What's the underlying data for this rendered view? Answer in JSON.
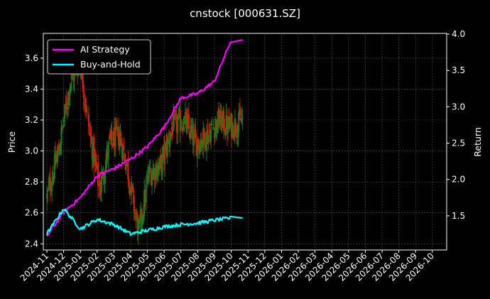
{
  "chart_data": {
    "type": "line",
    "title": "cnstock [000631.SZ]",
    "ylabel": "Price",
    "y2label": "Return",
    "ylim": [
      2.36,
      3.76
    ],
    "y2lim": [
      1.03,
      4.01
    ],
    "yticks": [
      "2.4",
      "2.6",
      "2.8",
      "3.0",
      "3.2",
      "3.4",
      "3.6"
    ],
    "y2ticks": [
      "1.5",
      "2.0",
      "2.5",
      "3.0",
      "3.5",
      "4.0"
    ],
    "xticks": [
      "2024-11",
      "2024-12",
      "2025-01",
      "2025-02",
      "2025-03",
      "2025-04",
      "2025-05",
      "2025-06",
      "2025-07",
      "2025-08",
      "2025-09",
      "2025-10",
      "2025-11",
      "2025-12",
      "2026-01",
      "2026-02",
      "2026-03",
      "2026-04",
      "2026-05",
      "2026-06",
      "2026-07",
      "2026-08",
      "2026-09",
      "2026-10"
    ],
    "grid": true,
    "legend_position": "top-left",
    "colors": {
      "ai": "#ff00ff",
      "bh": "#00ffff",
      "up": "#1f7a1f",
      "down": "#cc2200",
      "grid": "#555555"
    },
    "candles_price_range": {
      "start": "2024-11",
      "end": "2025-10",
      "approx_open": 2.7,
      "peak": 3.58,
      "trough": 2.47,
      "approx_close": 3.2
    },
    "series": [
      {
        "name": "AI Strategy",
        "axis": "right",
        "x": [
          "2024-11",
          "2024-12",
          "2025-01",
          "2025-02",
          "2025-03",
          "2025-04",
          "2025-05",
          "2025-06",
          "2025-07",
          "2025-08",
          "2025-09",
          "2025-10"
        ],
        "values": [
          1.22,
          1.55,
          1.75,
          2.05,
          2.15,
          2.28,
          2.45,
          2.72,
          3.12,
          3.18,
          3.35,
          3.92
        ]
      },
      {
        "name": "Buy-and-Hold",
        "axis": "right",
        "x": [
          "2024-11",
          "2024-12",
          "2025-01",
          "2025-02",
          "2025-03",
          "2025-04",
          "2025-05",
          "2025-06",
          "2025-07",
          "2025-08",
          "2025-09",
          "2025-10"
        ],
        "values": [
          1.25,
          1.6,
          1.32,
          1.45,
          1.38,
          1.25,
          1.3,
          1.35,
          1.38,
          1.4,
          1.44,
          1.47
        ]
      }
    ]
  }
}
